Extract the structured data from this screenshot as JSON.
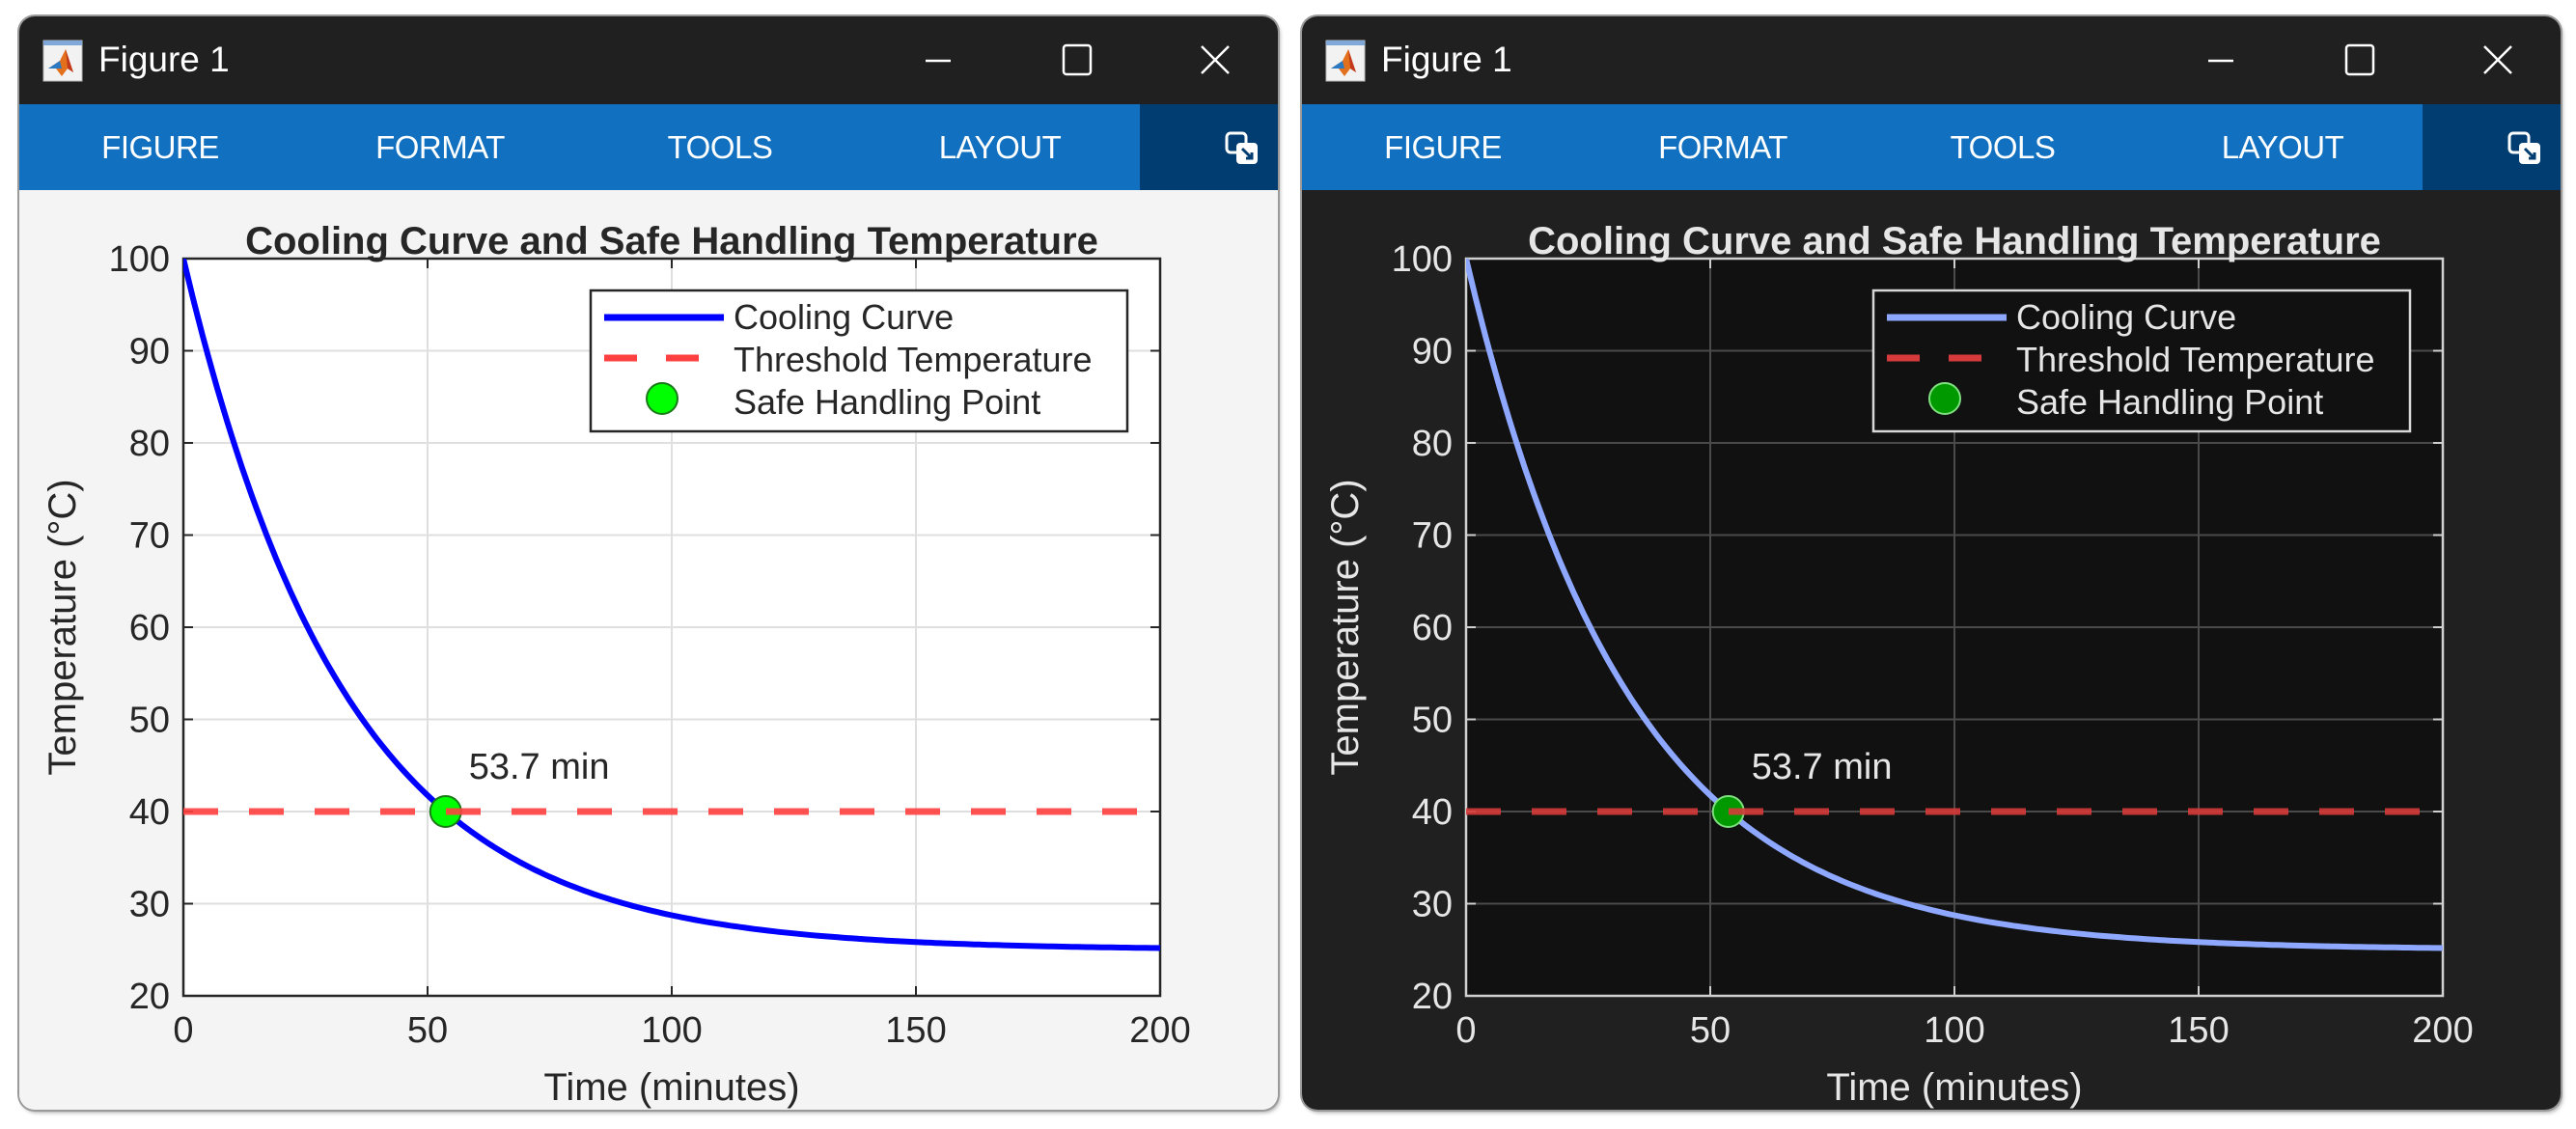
{
  "windows": [
    {
      "theme": "light",
      "title": "Figure 1",
      "ribbon_tabs": [
        "FIGURE",
        "FORMAT",
        "TOOLS",
        "LAYOUT"
      ],
      "controls": {
        "minimize": "minimize-icon",
        "maximize": "maximize-icon",
        "close": "close-icon",
        "undock": "undock-icon"
      },
      "colors": {
        "axes_bg": "#ffffff",
        "figure_bg": "#f4f4f4",
        "text": "#262626",
        "axis": "#262626",
        "grid": "#dfdfdf",
        "curve": "#0000ff",
        "threshold": "#ff4040",
        "marker_fill": "#00ff00",
        "marker_edge": "#1a7a1a",
        "legend_bg": "#ffffff",
        "legend_edge": "#262626"
      }
    },
    {
      "theme": "dark",
      "title": "Figure 1",
      "ribbon_tabs": [
        "FIGURE",
        "FORMAT",
        "TOOLS",
        "LAYOUT"
      ],
      "controls": {
        "minimize": "minimize-icon",
        "maximize": "maximize-icon",
        "close": "close-icon",
        "undock": "undock-icon"
      },
      "colors": {
        "axes_bg": "#111111",
        "figure_bg": "#202020",
        "text": "#e6e6e6",
        "axis": "#d0d0d0",
        "grid": "#4a4a4a",
        "curve": "#8fa8ff",
        "threshold": "#d63a3a",
        "marker_fill": "#009900",
        "marker_edge": "#7fe07f",
        "legend_bg": "#111111",
        "legend_edge": "#d8d8d8"
      }
    }
  ],
  "chart_data": [
    {
      "type": "line",
      "theme": "light",
      "title": "Cooling Curve and Safe Handling Temperature",
      "xlabel": "Time (minutes)",
      "ylabel": "Temperature (°C)",
      "xlim": [
        0,
        200
      ],
      "ylim": [
        20,
        100
      ],
      "xticks": [
        0,
        50,
        100,
        150,
        200
      ],
      "yticks": [
        20,
        30,
        40,
        50,
        60,
        70,
        80,
        90,
        100
      ],
      "grid": true,
      "legend_location": "top-right",
      "series": [
        {
          "name": "Cooling Curve",
          "style": "solid",
          "model": "T = 25 + 75*exp(-0.02997*t)",
          "x": [
            0,
            10,
            20,
            30,
            40,
            50,
            53.7,
            60,
            70,
            80,
            90,
            100,
            110,
            120,
            130,
            140,
            150,
            160,
            170,
            180,
            190,
            200
          ],
          "y": [
            100,
            80.6,
            66.2,
            55.5,
            47.6,
            41.7,
            40.0,
            37.4,
            34.2,
            31.8,
            30.0,
            28.7,
            27.8,
            27.0,
            26.5,
            26.1,
            25.8,
            25.6,
            25.5,
            25.3,
            25.3,
            25.2
          ]
        },
        {
          "name": "Threshold Temperature",
          "style": "dashed",
          "x": [
            0,
            200
          ],
          "y": [
            40,
            40
          ]
        },
        {
          "name": "Safe Handling Point",
          "style": "marker",
          "x": [
            53.7
          ],
          "y": [
            40
          ]
        }
      ],
      "annotations": [
        {
          "text": "53.7 min",
          "x": 53.7,
          "y": 40
        }
      ]
    },
    {
      "type": "line",
      "theme": "dark",
      "title": "Cooling Curve and Safe Handling Temperature",
      "xlabel": "Time (minutes)",
      "ylabel": "Temperature (°C)",
      "xlim": [
        0,
        200
      ],
      "ylim": [
        20,
        100
      ],
      "xticks": [
        0,
        50,
        100,
        150,
        200
      ],
      "yticks": [
        20,
        30,
        40,
        50,
        60,
        70,
        80,
        90,
        100
      ],
      "grid": true,
      "legend_location": "top-right",
      "series": [
        {
          "name": "Cooling Curve",
          "style": "solid",
          "model": "T = 25 + 75*exp(-0.02997*t)",
          "x": [
            0,
            10,
            20,
            30,
            40,
            50,
            53.7,
            60,
            70,
            80,
            90,
            100,
            110,
            120,
            130,
            140,
            150,
            160,
            170,
            180,
            190,
            200
          ],
          "y": [
            100,
            80.6,
            66.2,
            55.5,
            47.6,
            41.7,
            40.0,
            37.4,
            34.2,
            31.8,
            30.0,
            28.7,
            27.8,
            27.0,
            26.5,
            26.1,
            25.8,
            25.6,
            25.5,
            25.3,
            25.3,
            25.2
          ]
        },
        {
          "name": "Threshold Temperature",
          "style": "dashed",
          "x": [
            0,
            200
          ],
          "y": [
            40,
            40
          ]
        },
        {
          "name": "Safe Handling Point",
          "style": "marker",
          "x": [
            53.7
          ],
          "y": [
            40
          ]
        }
      ],
      "annotations": [
        {
          "text": "53.7 min",
          "x": 53.7,
          "y": 40
        }
      ]
    }
  ]
}
